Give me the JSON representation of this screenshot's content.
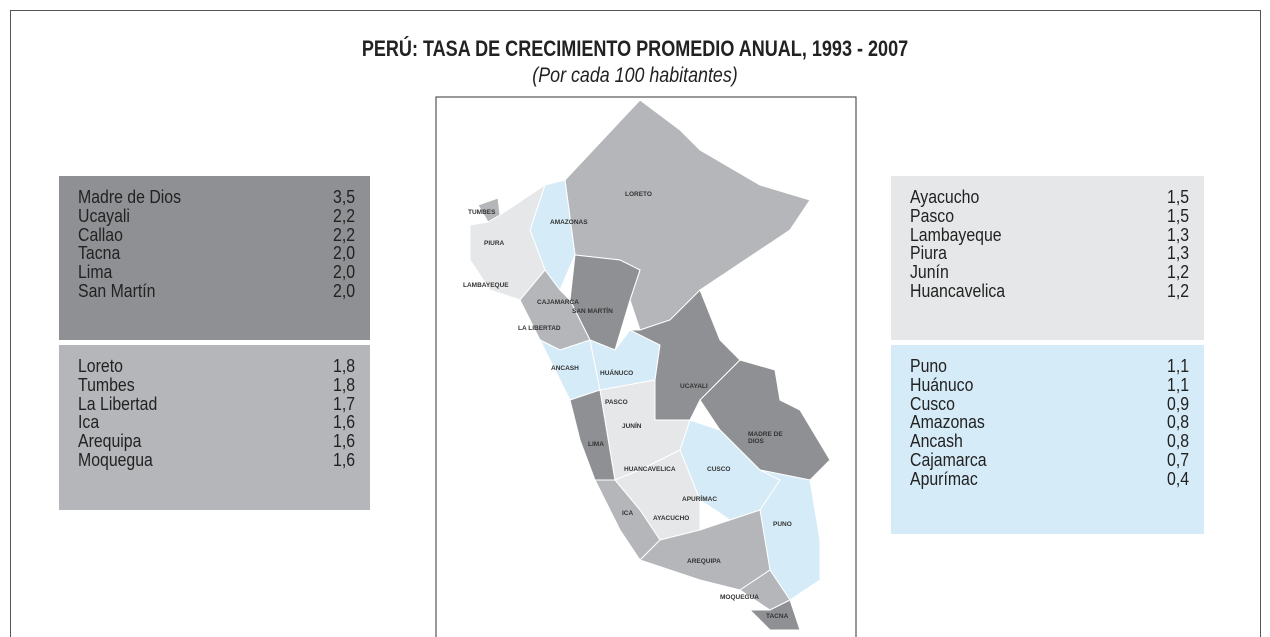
{
  "title": "PERÚ: TASA DE CRECIMIENTO PROMEDIO ANUAL, 1993 - 2007",
  "subtitle": "(Por cada 100 habitantes)",
  "groups": [
    {
      "rows": [
        [
          "Madre de Dios",
          "3,5"
        ],
        [
          "Ucayali",
          "2,2"
        ],
        [
          "Callao",
          "2,2"
        ],
        [
          "Tacna",
          "2,0"
        ],
        [
          "Lima",
          "2,0"
        ],
        [
          "San Martín",
          "2,0"
        ]
      ]
    },
    {
      "rows": [
        [
          "Loreto",
          "1,8"
        ],
        [
          "Tumbes",
          "1,8"
        ],
        [
          "La Libertad",
          "1,7"
        ],
        [
          "Ica",
          "1,6"
        ],
        [
          "Arequipa",
          "1,6"
        ],
        [
          "Moquegua",
          "1,6"
        ]
      ]
    },
    {
      "rows": [
        [
          "Ayacucho",
          "1,5"
        ],
        [
          "Pasco",
          "1,5"
        ],
        [
          "Lambayeque",
          "1,3"
        ],
        [
          "Piura",
          "1,3"
        ],
        [
          "Junín",
          "1,2"
        ],
        [
          "Huancavelica",
          "1,2"
        ]
      ]
    },
    {
      "rows": [
        [
          "Puno",
          "1,1"
        ],
        [
          "Huánuco",
          "1,1"
        ],
        [
          "Cusco",
          "0,9"
        ],
        [
          "Amazonas",
          "0,8"
        ],
        [
          "Ancash",
          "0,8"
        ],
        [
          "Cajamarca",
          "0,7"
        ],
        [
          "Apurímac",
          "0,4"
        ]
      ]
    }
  ],
  "map_labels": [
    "LORETO",
    "TUMBES",
    "AMAZONAS",
    "PIURA",
    "LAMBAYEQUE",
    "CAJAMARCA",
    "SAN MARTÍN",
    "LA LIBERTAD",
    "ANCASH",
    "HUÁNUCO",
    "UCAYALI",
    "PASCO",
    "JUNÍN",
    "MADRE DE",
    "DIOS",
    "LIMA",
    "HUANCAVELICA",
    "CUSCO",
    "APURÍMAC",
    "ICA",
    "AYACUCHO",
    "PUNO",
    "AREQUIPA",
    "MOQUEGUA",
    "TACNA"
  ]
}
